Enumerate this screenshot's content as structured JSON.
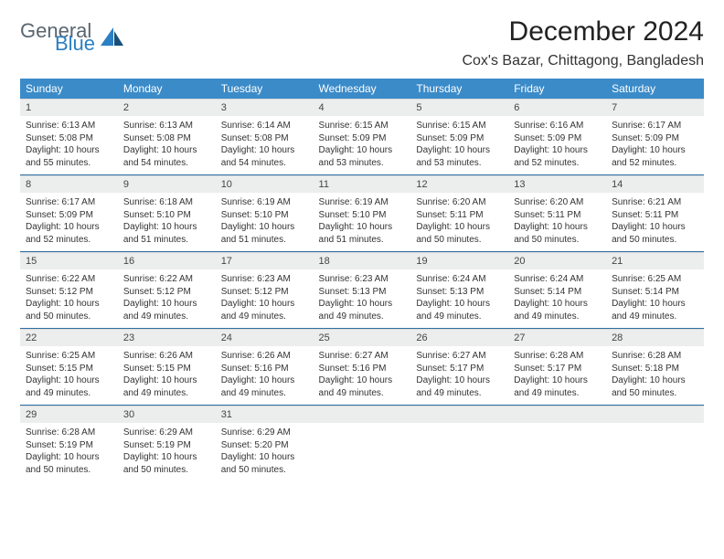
{
  "brand": {
    "part1": "General",
    "part2": "Blue"
  },
  "title": "December 2024",
  "location": "Cox's Bazar, Chittagong, Bangladesh",
  "colors": {
    "header_bg": "#3b8bc9",
    "header_text": "#ffffff",
    "daynum_bg": "#eceded",
    "row_border": "#2e6da4",
    "logo_gray": "#5a6670",
    "logo_blue": "#2b7fc3"
  },
  "weekdays": [
    "Sunday",
    "Monday",
    "Tuesday",
    "Wednesday",
    "Thursday",
    "Friday",
    "Saturday"
  ],
  "weeks": [
    [
      {
        "n": "1",
        "sr": "6:13 AM",
        "ss": "5:08 PM",
        "dh": "10",
        "dm": "55"
      },
      {
        "n": "2",
        "sr": "6:13 AM",
        "ss": "5:08 PM",
        "dh": "10",
        "dm": "54"
      },
      {
        "n": "3",
        "sr": "6:14 AM",
        "ss": "5:08 PM",
        "dh": "10",
        "dm": "54"
      },
      {
        "n": "4",
        "sr": "6:15 AM",
        "ss": "5:09 PM",
        "dh": "10",
        "dm": "53"
      },
      {
        "n": "5",
        "sr": "6:15 AM",
        "ss": "5:09 PM",
        "dh": "10",
        "dm": "53"
      },
      {
        "n": "6",
        "sr": "6:16 AM",
        "ss": "5:09 PM",
        "dh": "10",
        "dm": "52"
      },
      {
        "n": "7",
        "sr": "6:17 AM",
        "ss": "5:09 PM",
        "dh": "10",
        "dm": "52"
      }
    ],
    [
      {
        "n": "8",
        "sr": "6:17 AM",
        "ss": "5:09 PM",
        "dh": "10",
        "dm": "52"
      },
      {
        "n": "9",
        "sr": "6:18 AM",
        "ss": "5:10 PM",
        "dh": "10",
        "dm": "51"
      },
      {
        "n": "10",
        "sr": "6:19 AM",
        "ss": "5:10 PM",
        "dh": "10",
        "dm": "51"
      },
      {
        "n": "11",
        "sr": "6:19 AM",
        "ss": "5:10 PM",
        "dh": "10",
        "dm": "51"
      },
      {
        "n": "12",
        "sr": "6:20 AM",
        "ss": "5:11 PM",
        "dh": "10",
        "dm": "50"
      },
      {
        "n": "13",
        "sr": "6:20 AM",
        "ss": "5:11 PM",
        "dh": "10",
        "dm": "50"
      },
      {
        "n": "14",
        "sr": "6:21 AM",
        "ss": "5:11 PM",
        "dh": "10",
        "dm": "50"
      }
    ],
    [
      {
        "n": "15",
        "sr": "6:22 AM",
        "ss": "5:12 PM",
        "dh": "10",
        "dm": "50"
      },
      {
        "n": "16",
        "sr": "6:22 AM",
        "ss": "5:12 PM",
        "dh": "10",
        "dm": "49"
      },
      {
        "n": "17",
        "sr": "6:23 AM",
        "ss": "5:12 PM",
        "dh": "10",
        "dm": "49"
      },
      {
        "n": "18",
        "sr": "6:23 AM",
        "ss": "5:13 PM",
        "dh": "10",
        "dm": "49"
      },
      {
        "n": "19",
        "sr": "6:24 AM",
        "ss": "5:13 PM",
        "dh": "10",
        "dm": "49"
      },
      {
        "n": "20",
        "sr": "6:24 AM",
        "ss": "5:14 PM",
        "dh": "10",
        "dm": "49"
      },
      {
        "n": "21",
        "sr": "6:25 AM",
        "ss": "5:14 PM",
        "dh": "10",
        "dm": "49"
      }
    ],
    [
      {
        "n": "22",
        "sr": "6:25 AM",
        "ss": "5:15 PM",
        "dh": "10",
        "dm": "49"
      },
      {
        "n": "23",
        "sr": "6:26 AM",
        "ss": "5:15 PM",
        "dh": "10",
        "dm": "49"
      },
      {
        "n": "24",
        "sr": "6:26 AM",
        "ss": "5:16 PM",
        "dh": "10",
        "dm": "49"
      },
      {
        "n": "25",
        "sr": "6:27 AM",
        "ss": "5:16 PM",
        "dh": "10",
        "dm": "49"
      },
      {
        "n": "26",
        "sr": "6:27 AM",
        "ss": "5:17 PM",
        "dh": "10",
        "dm": "49"
      },
      {
        "n": "27",
        "sr": "6:28 AM",
        "ss": "5:17 PM",
        "dh": "10",
        "dm": "49"
      },
      {
        "n": "28",
        "sr": "6:28 AM",
        "ss": "5:18 PM",
        "dh": "10",
        "dm": "50"
      }
    ],
    [
      {
        "n": "29",
        "sr": "6:28 AM",
        "ss": "5:19 PM",
        "dh": "10",
        "dm": "50"
      },
      {
        "n": "30",
        "sr": "6:29 AM",
        "ss": "5:19 PM",
        "dh": "10",
        "dm": "50"
      },
      {
        "n": "31",
        "sr": "6:29 AM",
        "ss": "5:20 PM",
        "dh": "10",
        "dm": "50"
      },
      {
        "empty": true
      },
      {
        "empty": true
      },
      {
        "empty": true
      },
      {
        "empty": true
      }
    ]
  ],
  "labels": {
    "sunrise": "Sunrise:",
    "sunset": "Sunset:",
    "daylight": "Daylight:",
    "hours": "hours",
    "and": "and",
    "minutes": "minutes."
  }
}
